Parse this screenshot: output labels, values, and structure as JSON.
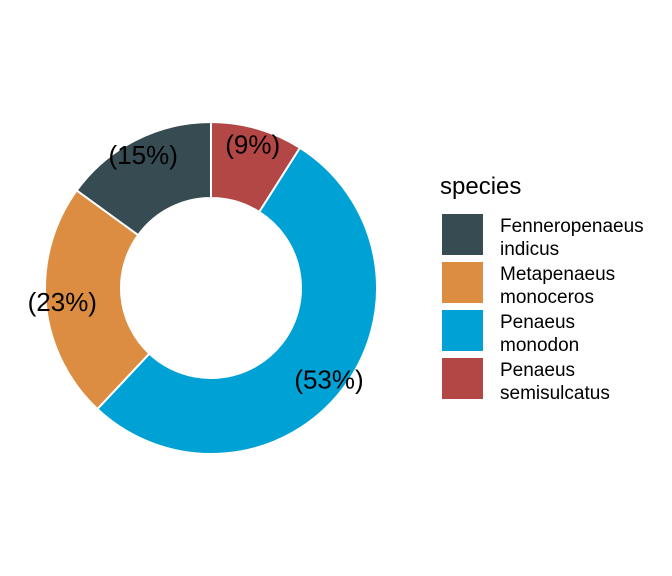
{
  "chart_data": {
    "type": "pie",
    "donut": true,
    "legend_title": "species",
    "legend_position": "right",
    "slices": [
      {
        "name": "Fenneropenaeus indicus",
        "lines": [
          "Fenneropenaeus",
          "indicus"
        ],
        "value": 15,
        "label": "(15%)",
        "color": "#374B52"
      },
      {
        "name": "Metapenaeus monoceros",
        "lines": [
          "Metapenaeus",
          "monoceros"
        ],
        "value": 23,
        "label": "(23%)",
        "color": "#DC8D42"
      },
      {
        "name": "Penaeus monodon",
        "lines": [
          "Penaeus",
          "monodon"
        ],
        "value": 53,
        "label": "(53%)",
        "color": "#00A1D5"
      },
      {
        "name": "Penaeus semisulcatus",
        "lines": [
          "Penaeus",
          "semisulcatus"
        ],
        "value": 9,
        "label": "(9%)",
        "color": "#B24745"
      }
    ],
    "draw_order": [
      3,
      2,
      1,
      0
    ]
  }
}
